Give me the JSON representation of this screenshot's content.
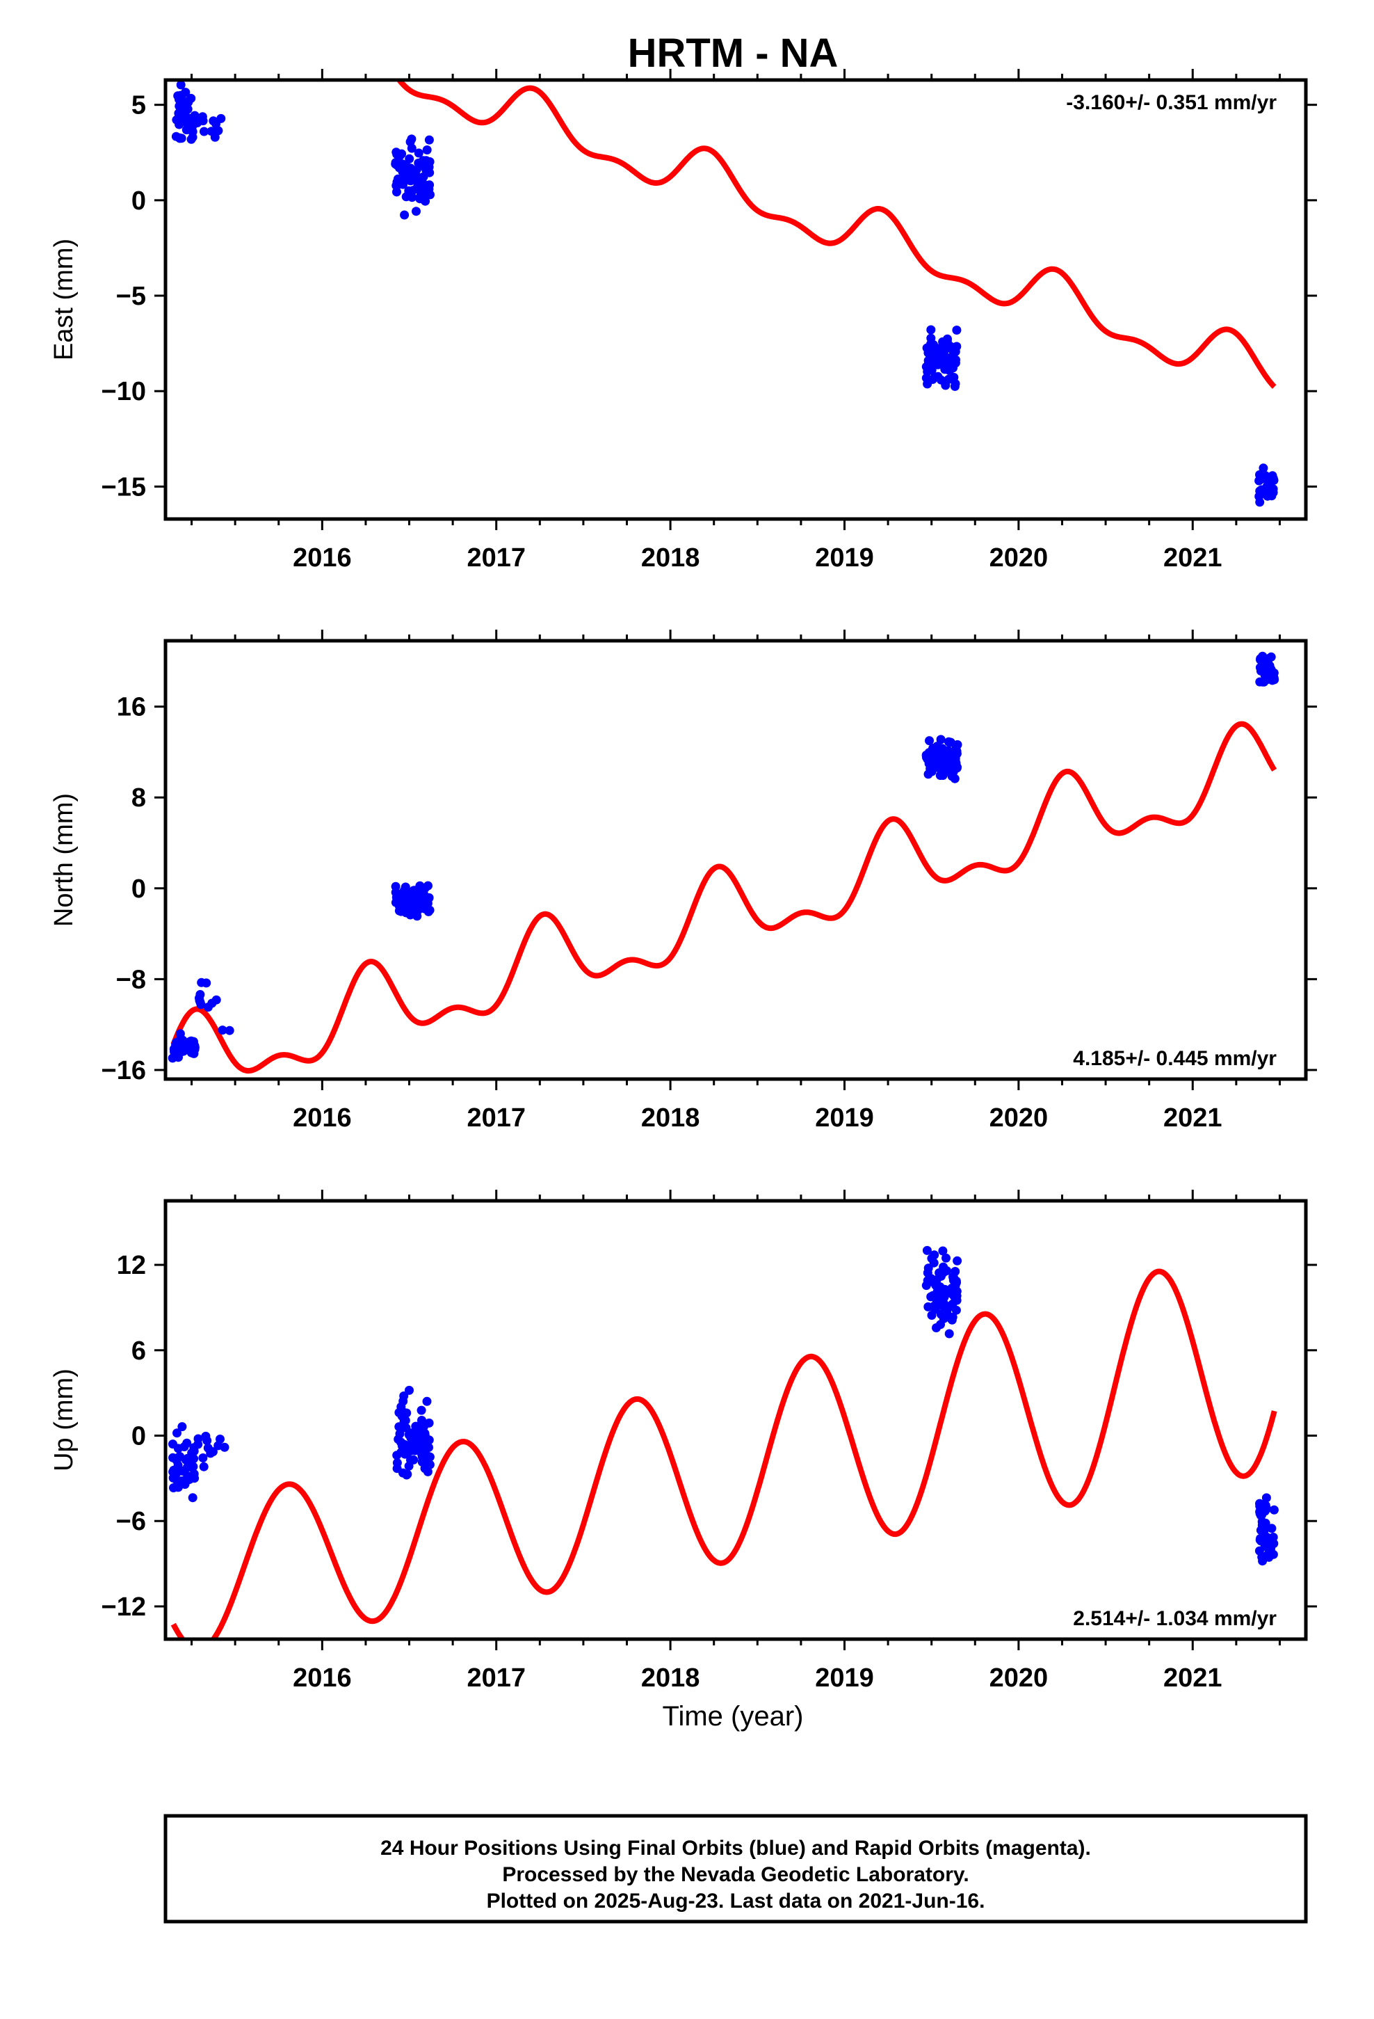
{
  "title": "HRTM - NA",
  "x_axis": {
    "label": "Time (year)",
    "range": [
      2015.1,
      2021.65
    ],
    "ticks": [
      2016,
      2017,
      2018,
      2019,
      2020,
      2021
    ],
    "tick_labels": [
      "2016",
      "2017",
      "2018",
      "2019",
      "2020",
      "2021"
    ]
  },
  "footer": {
    "lines": [
      "24 Hour Positions Using Final Orbits (blue) and Rapid Orbits (magenta).",
      "Processed by the Nevada Geodetic Laboratory.",
      "Plotted on 2025-Aug-23. Last data on 2021-Jun-16."
    ]
  },
  "colors": {
    "data_points": "#0000ff",
    "model_curve": "#ff0000",
    "frame": "#000000"
  },
  "chart_data": [
    {
      "type": "scatter",
      "ylabel": "East (mm)",
      "rate_label": "-3.160+/- 0.351 mm/yr",
      "rate_position": "top-right",
      "ylim": [
        -16.7,
        6.3
      ],
      "yticks": [
        5,
        0,
        -5,
        -10,
        -15
      ],
      "ytick_labels": [
        "5",
        "0",
        "−5",
        "−10",
        "−15"
      ],
      "model": {
        "intercept": 1.64,
        "trend": -3.16,
        "annual_sin": 1.15,
        "annual_cos": 0.1,
        "semi_sin": 0.3,
        "semi_cos": -0.5
      },
      "series": [
        {
          "clusters": [
            {
              "x": [
                2015.15,
                2015.27
              ],
              "center": 4.4,
              "spread": 1.6,
              "count": 45
            },
            {
              "x": [
                2015.27,
                2015.42
              ],
              "center": 3.9,
              "spread": 0.6,
              "count": 10
            },
            {
              "x": [
                2016.42,
                2016.62
              ],
              "center": 1.2,
              "spread": 1.9,
              "count": 85
            },
            {
              "x": [
                2019.47,
                2019.65
              ],
              "center": -8.2,
              "spread": 1.5,
              "count": 75
            },
            {
              "x": [
                2021.38,
                2021.47
              ],
              "center": -14.9,
              "spread": 0.9,
              "count": 40
            }
          ]
        }
      ]
    },
    {
      "type": "scatter",
      "ylabel": "North (mm)",
      "rate_label": "4.185+/- 0.445 mm/yr",
      "rate_position": "bottom-right",
      "ylim": [
        -16.8,
        21.8
      ],
      "yticks": [
        16,
        8,
        0,
        -8,
        -16
      ],
      "ytick_labels": [
        "16",
        "8",
        "0",
        "−8",
        "−16"
      ],
      "model": {
        "intercept": -3.91,
        "trend": 4.185,
        "annual_sin": 3.0,
        "annual_cos": -0.6,
        "semi_sin": -0.3,
        "semi_cos": -1.6
      },
      "series": [
        {
          "clusters": [
            {
              "x": [
                2015.14,
                2015.27
              ],
              "center": -14.0,
              "spread": 1.0,
              "count": 50
            },
            {
              "x": [
                2015.27,
                2015.48
              ],
              "center": -10.0,
              "spread": 2.2,
              "count": 12
            },
            {
              "x": [
                2016.42,
                2016.62
              ],
              "center": -1.0,
              "spread": 1.5,
              "count": 85
            },
            {
              "x": [
                2019.47,
                2019.65
              ],
              "center": 11.3,
              "spread": 1.8,
              "count": 75
            },
            {
              "x": [
                2021.38,
                2021.47
              ],
              "center": 19.0,
              "spread": 1.3,
              "count": 40
            }
          ]
        }
      ]
    },
    {
      "type": "scatter",
      "ylabel": "Up (mm)",
      "rate_label": "2.514+/- 1.034 mm/yr",
      "rate_position": "bottom-right",
      "ylim": [
        -14.3,
        16.5
      ],
      "yticks": [
        12,
        6,
        0,
        -6,
        -12
      ],
      "ytick_labels": [
        "12",
        "6",
        "0",
        "−6",
        "−12"
      ],
      "model": {
        "intercept": -3.2,
        "trend": 2.514,
        "annual_sin": -4.78,
        "annual_cos": 1.47,
        "semi_sin": 0.0,
        "semi_cos": 0.0,
        "amp_growth": 0.6
      },
      "series": [
        {
          "clusters": [
            {
              "x": [
                2015.14,
                2015.27
              ],
              "center": -2.5,
              "spread": 2.8,
              "count": 45
            },
            {
              "x": [
                2015.27,
                2015.45
              ],
              "center": -0.3,
              "spread": 2.0,
              "count": 12
            },
            {
              "x": [
                2016.42,
                2016.62
              ],
              "center": -0.2,
              "spread": 3.0,
              "count": 85
            },
            {
              "x": [
                2019.47,
                2019.65
              ],
              "center": 10.0,
              "spread": 2.7,
              "count": 75
            },
            {
              "x": [
                2021.38,
                2021.47
              ],
              "center": -6.5,
              "spread": 2.7,
              "count": 40
            }
          ]
        }
      ]
    }
  ]
}
